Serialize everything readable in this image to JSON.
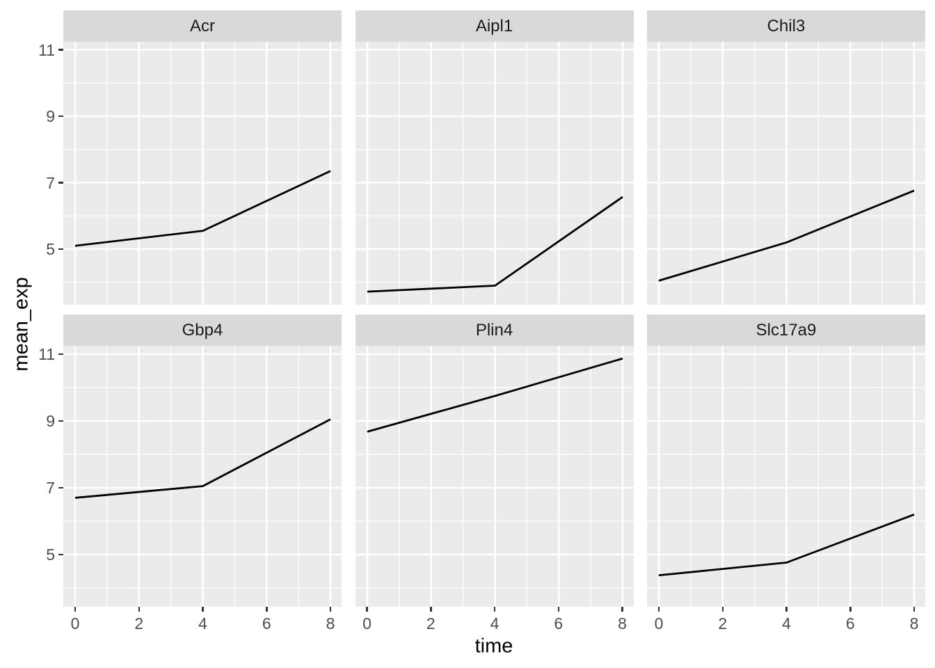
{
  "chart_data": {
    "type": "line",
    "title": "",
    "xlabel": "time",
    "ylabel": "mean_exp",
    "x": [
      0,
      4,
      8
    ],
    "xticks": [
      0,
      2,
      4,
      6,
      8
    ],
    "yticks": [
      11,
      9,
      7,
      5
    ],
    "x_minor_gridlines": [
      1,
      3,
      5,
      7
    ],
    "y_minor_gridlines": [
      4,
      6,
      8,
      10
    ],
    "xlim": [
      -0.37,
      8.37
    ],
    "ylim": [
      3.3,
      11.25
    ],
    "grid": "white major and minor gridlines on grey panel",
    "legend_position": "none",
    "facet_layout": {
      "rows": 2,
      "cols": 3
    },
    "facets": [
      {
        "title": "Acr",
        "values": [
          5.1,
          5.55,
          7.35
        ]
      },
      {
        "title": "Aipl1",
        "values": [
          3.72,
          3.9,
          6.57
        ]
      },
      {
        "title": "Chil3",
        "values": [
          4.05,
          5.2,
          6.76
        ]
      },
      {
        "title": "Gbp4",
        "values": [
          6.7,
          7.05,
          9.05
        ]
      },
      {
        "title": "Plin4",
        "values": [
          8.68,
          9.75,
          10.87
        ]
      },
      {
        "title": "Slc17a9",
        "values": [
          4.38,
          4.76,
          6.2
        ]
      }
    ],
    "colors": {
      "line": "#000000",
      "panel_background": "#ebebeb",
      "strip_background": "#d9d9d9",
      "gridline": "#ffffff",
      "tick_mark": "#333333",
      "tick_label": "#4d4d4d",
      "axis_title": "#000000",
      "strip_text": "#1a1a1a",
      "figure_background": "#ffffff"
    }
  }
}
